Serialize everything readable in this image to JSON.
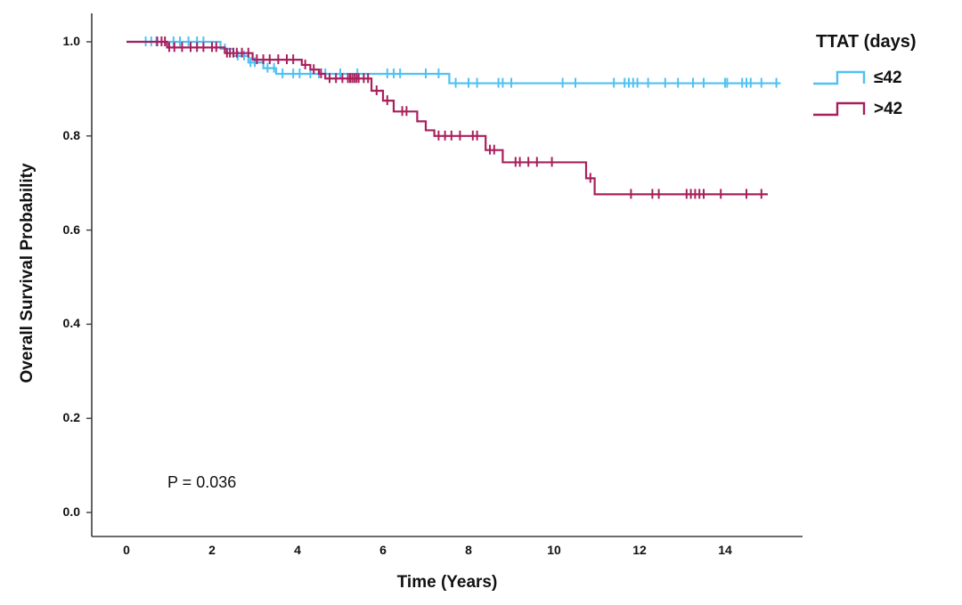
{
  "chart_data": {
    "type": "line",
    "subtype": "kaplan_meier_step_curve",
    "title": "",
    "xlabel": "Time (Years)",
    "ylabel": "Overall Survival Probability",
    "annotation": "P = 0.036",
    "xlim": [
      0,
      15.5
    ],
    "ylim": [
      0.0,
      1.05
    ],
    "xticks": [
      "0",
      "2",
      "4",
      "6",
      "8",
      "10",
      "12",
      "14"
    ],
    "yticks": [
      "0.0",
      "0.2",
      "0.4",
      "0.6",
      "0.8",
      "1.0"
    ],
    "grid": false,
    "colors": {
      "axis": "#3C3C3C",
      "text": "#111111",
      "background": "#FFFFFF"
    },
    "legend": {
      "title": "TTAT (days)",
      "position": "top-right"
    },
    "series": [
      {
        "name": "≤42",
        "id": "le42",
        "color": "#4FC1F2",
        "end_time": 15.3,
        "steps": [
          [
            0,
            1.0
          ],
          [
            2.2,
            0.985
          ],
          [
            2.5,
            0.97
          ],
          [
            2.85,
            0.956
          ],
          [
            3.2,
            0.944
          ],
          [
            3.5,
            0.932
          ],
          [
            7.55,
            0.912
          ]
        ],
        "censor_times": [
          0.45,
          0.58,
          0.7,
          1.1,
          1.25,
          1.45,
          1.65,
          1.8,
          2.3,
          2.6,
          2.75,
          2.9,
          3.0,
          3.3,
          3.45,
          3.65,
          3.9,
          4.05,
          4.3,
          4.5,
          4.65,
          5.0,
          5.4,
          6.1,
          6.25,
          6.4,
          7.0,
          7.3,
          7.7,
          8.0,
          8.2,
          8.7,
          8.8,
          9.0,
          10.2,
          10.5,
          11.4,
          11.65,
          11.75,
          11.85,
          11.95,
          12.2,
          12.6,
          12.9,
          13.25,
          13.5,
          14.0,
          14.05,
          14.4,
          14.5,
          14.6,
          14.85,
          15.2
        ]
      },
      {
        "name": ">42",
        "id": "gt42",
        "color": "#A91F5D",
        "end_time": 15.0,
        "steps": [
          [
            0,
            1.0
          ],
          [
            0.95,
            0.988
          ],
          [
            2.3,
            0.976
          ],
          [
            2.95,
            0.962
          ],
          [
            4.1,
            0.951
          ],
          [
            4.3,
            0.941
          ],
          [
            4.5,
            0.932
          ],
          [
            4.65,
            0.922
          ],
          [
            5.73,
            0.896
          ],
          [
            6.0,
            0.875
          ],
          [
            6.25,
            0.852
          ],
          [
            6.8,
            0.831
          ],
          [
            7.0,
            0.812
          ],
          [
            7.2,
            0.8
          ],
          [
            8.4,
            0.77
          ],
          [
            8.8,
            0.744
          ],
          [
            10.75,
            0.71
          ],
          [
            10.95,
            0.676
          ]
        ],
        "censor_times": [
          0.72,
          0.82,
          0.9,
          1.0,
          1.12,
          1.3,
          1.5,
          1.65,
          1.8,
          2.0,
          2.1,
          2.35,
          2.42,
          2.5,
          2.58,
          2.7,
          2.85,
          3.05,
          3.2,
          3.35,
          3.55,
          3.75,
          3.9,
          4.18,
          4.38,
          4.55,
          4.75,
          4.9,
          5.05,
          5.18,
          5.23,
          5.28,
          5.33,
          5.38,
          5.43,
          5.55,
          5.65,
          5.85,
          6.1,
          6.45,
          6.55,
          7.3,
          7.45,
          7.6,
          7.8,
          8.1,
          8.2,
          8.5,
          8.6,
          9.1,
          9.2,
          9.4,
          9.6,
          9.95,
          10.85,
          11.8,
          12.3,
          12.45,
          13.1,
          13.2,
          13.3,
          13.4,
          13.5,
          13.9,
          14.5,
          14.85
        ]
      }
    ]
  }
}
